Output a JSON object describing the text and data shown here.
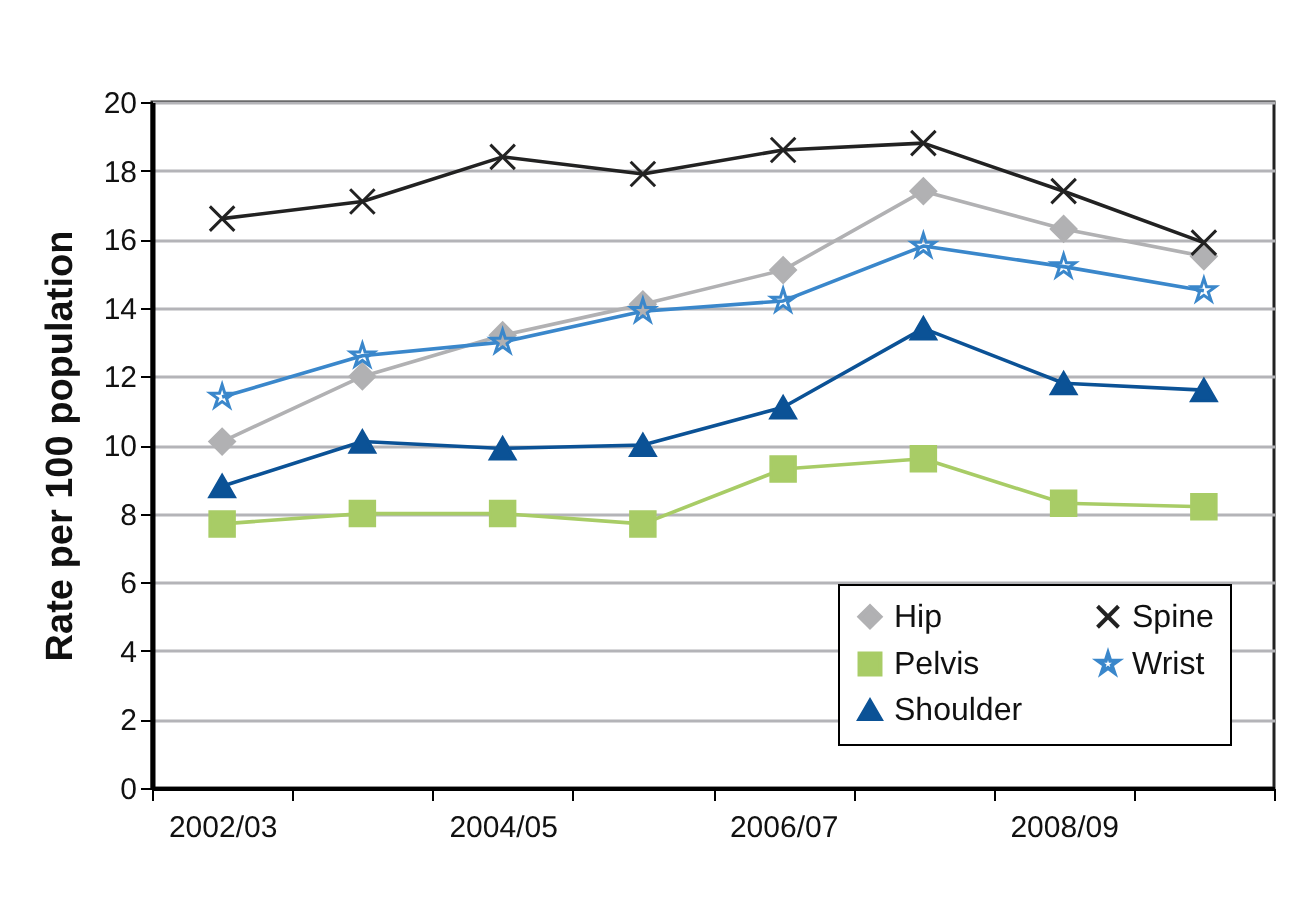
{
  "chart_data": {
    "type": "line",
    "ylabel": "Rate per 100 population",
    "categories": [
      "2002/03",
      null,
      "2004/05",
      null,
      "2006/07",
      null,
      "2008/09",
      null
    ],
    "ylim": [
      0,
      20
    ],
    "yticks": [
      0,
      2,
      4,
      6,
      8,
      10,
      12,
      14,
      16,
      18,
      20
    ],
    "grid": "y",
    "legend": "bottom right",
    "series": [
      {
        "name": "Hip",
        "color": "#b1b1b3",
        "marker": "diamond",
        "values": [
          10.1,
          12.0,
          13.2,
          14.1,
          15.1,
          17.4,
          16.3,
          15.5
        ]
      },
      {
        "name": "Pelvis",
        "color": "#a8cc66",
        "marker": "square",
        "values": [
          7.7,
          8.0,
          8.0,
          7.7,
          9.3,
          9.6,
          8.3,
          8.2
        ]
      },
      {
        "name": "Shoulder",
        "color": "#0b5296",
        "marker": "triangle",
        "values": [
          8.8,
          10.1,
          9.9,
          10.0,
          11.1,
          13.4,
          11.8,
          11.6
        ]
      },
      {
        "name": "Spine",
        "color": "#222222",
        "marker": "cross",
        "values": [
          16.6,
          17.1,
          18.4,
          17.9,
          18.6,
          18.8,
          17.4,
          15.9
        ]
      },
      {
        "name": "Wrist",
        "color": "#3a87cb",
        "marker": "star",
        "values": [
          11.4,
          12.6,
          13.0,
          13.9,
          14.2,
          15.8,
          15.2,
          14.5
        ]
      }
    ]
  }
}
